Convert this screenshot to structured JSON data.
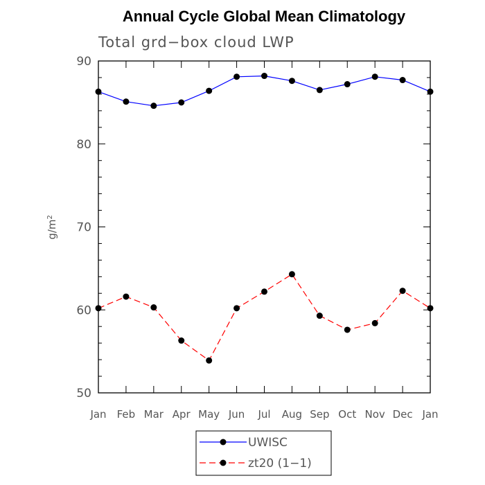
{
  "chart_data": {
    "type": "line",
    "title": "Annual Cycle Global Mean Climatology",
    "subtitle": "Total grd−box cloud LWP",
    "ylabel_base": "g/m",
    "ylabel_exp": "2",
    "categories": [
      "Jan",
      "Feb",
      "Mar",
      "Apr",
      "May",
      "Jun",
      "Jul",
      "Aug",
      "Sep",
      "Oct",
      "Nov",
      "Dec",
      "Jan"
    ],
    "ylim": [
      50,
      90
    ],
    "yticks": [
      "50",
      "60",
      "70",
      "80",
      "90"
    ],
    "series": [
      {
        "name": "UWISC",
        "color": "#0000ff",
        "dash": "solid",
        "values": [
          86.3,
          85.1,
          84.6,
          85.0,
          86.4,
          88.1,
          88.2,
          87.6,
          86.5,
          87.2,
          88.1,
          87.7,
          86.3
        ]
      },
      {
        "name": "zt20 (1−1)",
        "color": "#ff0000",
        "dash": "dashed",
        "values": [
          60.2,
          61.6,
          60.3,
          56.3,
          53.9,
          60.2,
          62.2,
          64.3,
          59.3,
          57.6,
          58.4,
          62.3,
          60.2
        ]
      }
    ]
  }
}
